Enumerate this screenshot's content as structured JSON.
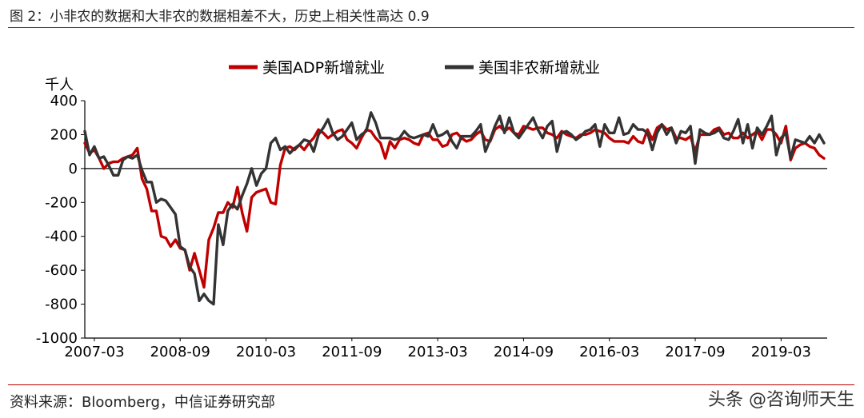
{
  "figure": {
    "title": "图 2：小非农的数据和大非农的数据相差不大，历史上相关性高达 0.9",
    "source": "资料来源：Bloomberg，中信证券研究部",
    "watermark": "头条 @咨询师天生"
  },
  "chart_data": {
    "type": "line",
    "ylabel": "千人",
    "ylim": [
      -1000,
      400
    ],
    "yticks": [
      400,
      200,
      0,
      -200,
      -400,
      -600,
      -800,
      -1000
    ],
    "xtick_labels": [
      "2007-03",
      "2008-09",
      "2010-03",
      "2011-09",
      "2013-03",
      "2014-09",
      "2016-03",
      "2017-09",
      "2019-03"
    ],
    "grid": false,
    "legend_position": "top",
    "x": [
      "2007-01",
      "2007-02",
      "2007-03",
      "2007-04",
      "2007-05",
      "2007-06",
      "2007-07",
      "2007-08",
      "2007-09",
      "2007-10",
      "2007-11",
      "2007-12",
      "2008-01",
      "2008-02",
      "2008-03",
      "2008-04",
      "2008-05",
      "2008-06",
      "2008-07",
      "2008-08",
      "2008-09",
      "2008-10",
      "2008-11",
      "2008-12",
      "2009-01",
      "2009-02",
      "2009-03",
      "2009-04",
      "2009-05",
      "2009-06",
      "2009-07",
      "2009-08",
      "2009-09",
      "2009-10",
      "2009-11",
      "2009-12",
      "2010-01",
      "2010-02",
      "2010-03",
      "2010-04",
      "2010-05",
      "2010-06",
      "2010-07",
      "2010-08",
      "2010-09",
      "2010-10",
      "2010-11",
      "2010-12",
      "2011-01",
      "2011-02",
      "2011-03",
      "2011-04",
      "2011-05",
      "2011-06",
      "2011-07",
      "2011-08",
      "2011-09",
      "2011-10",
      "2011-11",
      "2011-12",
      "2012-01",
      "2012-02",
      "2012-03",
      "2012-04",
      "2012-05",
      "2012-06",
      "2012-07",
      "2012-08",
      "2012-09",
      "2012-10",
      "2012-11",
      "2012-12",
      "2013-01",
      "2013-02",
      "2013-03",
      "2013-04",
      "2013-05",
      "2013-06",
      "2013-07",
      "2013-08",
      "2013-09",
      "2013-10",
      "2013-11",
      "2013-12",
      "2014-01",
      "2014-02",
      "2014-03",
      "2014-04",
      "2014-05",
      "2014-06",
      "2014-07",
      "2014-08",
      "2014-09",
      "2014-10",
      "2014-11",
      "2014-12",
      "2015-01",
      "2015-02",
      "2015-03",
      "2015-04",
      "2015-05",
      "2015-06",
      "2015-07",
      "2015-08",
      "2015-09",
      "2015-10",
      "2015-11",
      "2015-12",
      "2016-01",
      "2016-02",
      "2016-03",
      "2016-04",
      "2016-05",
      "2016-06",
      "2016-07",
      "2016-08",
      "2016-09",
      "2016-10",
      "2016-11",
      "2016-12",
      "2017-01",
      "2017-02",
      "2017-03",
      "2017-04",
      "2017-05",
      "2017-06",
      "2017-07",
      "2017-08",
      "2017-09",
      "2017-10",
      "2017-11",
      "2017-12",
      "2018-01",
      "2018-02",
      "2018-03",
      "2018-04",
      "2018-05",
      "2018-06",
      "2018-07",
      "2018-08",
      "2018-09",
      "2018-10",
      "2018-11",
      "2018-12",
      "2019-01",
      "2019-02",
      "2019-03",
      "2019-04",
      "2019-05",
      "2019-06",
      "2019-07",
      "2019-08",
      "2019-09",
      "2019-10",
      "2019-11",
      "2019-12"
    ],
    "series": [
      {
        "name": "美国ADP新增就业",
        "color": "#c00000",
        "values": [
          150,
          90,
          110,
          60,
          0,
          30,
          40,
          40,
          60,
          70,
          80,
          120,
          -60,
          -120,
          -250,
          -250,
          -400,
          -410,
          -460,
          -420,
          -470,
          -480,
          -600,
          -500,
          -600,
          -700,
          -420,
          -350,
          -260,
          -260,
          -200,
          -230,
          -110,
          -260,
          -370,
          -170,
          -140,
          -130,
          -120,
          -200,
          -210,
          20,
          120,
          130,
          110,
          140,
          110,
          150,
          180,
          230,
          210,
          180,
          200,
          220,
          230,
          170,
          150,
          120,
          180,
          230,
          220,
          180,
          150,
          60,
          160,
          120,
          170,
          180,
          170,
          150,
          140,
          200,
          210,
          170,
          170,
          130,
          140,
          200,
          210,
          180,
          160,
          170,
          200,
          220,
          170,
          160,
          230,
          250,
          220,
          240,
          210,
          200,
          250,
          240,
          230,
          240,
          240,
          210,
          200,
          180,
          220,
          200,
          190,
          180,
          200,
          200,
          210,
          230,
          220,
          210,
          180,
          160,
          160,
          160,
          150,
          190,
          160,
          150,
          230,
          170,
          240,
          260,
          230,
          240,
          180,
          180,
          170,
          190,
          100,
          200,
          200,
          200,
          230,
          240,
          200,
          210,
          180,
          180,
          210,
          180,
          200,
          220,
          170,
          230,
          230,
          200,
          150,
          250,
          50,
          120,
          140,
          150,
          130,
          120,
          80,
          60
        ]
      },
      {
        "name": "美国非农新增就业",
        "color": "#333333",
        "values": [
          220,
          80,
          130,
          60,
          70,
          20,
          -40,
          -40,
          50,
          70,
          60,
          80,
          -10,
          -80,
          -80,
          -200,
          -180,
          -190,
          -230,
          -270,
          -460,
          -480,
          -580,
          -620,
          -780,
          -740,
          -780,
          -800,
          -330,
          -450,
          -250,
          -210,
          -240,
          -160,
          -90,
          0,
          -100,
          -30,
          0,
          150,
          180,
          110,
          130,
          90,
          120,
          140,
          170,
          160,
          100,
          200,
          240,
          290,
          210,
          170,
          190,
          230,
          270,
          170,
          200,
          220,
          330,
          270,
          180,
          180,
          180,
          170,
          180,
          220,
          190,
          180,
          190,
          200,
          190,
          260,
          190,
          200,
          220,
          160,
          120,
          190,
          190,
          190,
          220,
          260,
          100,
          170,
          250,
          310,
          210,
          300,
          210,
          180,
          220,
          260,
          300,
          230,
          180,
          250,
          280,
          100,
          210,
          220,
          200,
          170,
          190,
          220,
          230,
          260,
          130,
          260,
          210,
          210,
          300,
          200,
          210,
          260,
          230,
          230,
          210,
          110,
          210,
          260,
          200,
          240,
          150,
          220,
          210,
          250,
          30,
          230,
          210,
          200,
          210,
          230,
          180,
          170,
          220,
          290,
          150,
          260,
          120,
          240,
          200,
          250,
          310,
          80,
          180,
          210,
          60,
          170,
          160,
          150,
          190,
          150,
          200,
          150
        ]
      }
    ]
  }
}
